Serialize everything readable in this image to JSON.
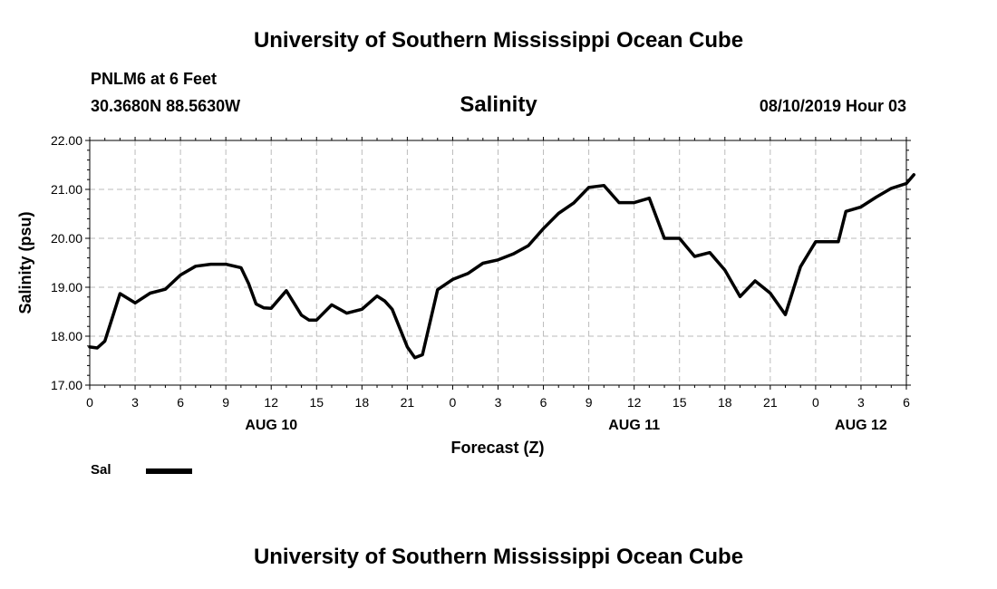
{
  "header": {
    "top_title": "University of Southern Mississippi Ocean Cube",
    "bottom_title": "University of Southern Mississippi Ocean Cube",
    "station": "PNLM6 at 6 Feet",
    "coords": "30.3680N 88.5630W",
    "datetime": "08/10/2019 Hour 03"
  },
  "legend": {
    "label": "Sal",
    "color": "#000000"
  },
  "chart_data": {
    "type": "line",
    "title": "Salinity",
    "xlabel": "Forecast (Z)",
    "ylabel": "Salinity (psu)",
    "ylim": [
      17.0,
      22.0
    ],
    "y_ticks": [
      "17.00",
      "18.00",
      "19.00",
      "20.00",
      "21.00",
      "22.00"
    ],
    "x_tick_labels": [
      "0",
      "3",
      "6",
      "9",
      "12",
      "15",
      "18",
      "21",
      "0",
      "3",
      "6",
      "9",
      "12",
      "15",
      "18",
      "21",
      "0",
      "3",
      "6"
    ],
    "day_labels": [
      {
        "label": "AUG 10",
        "hour": 12
      },
      {
        "label": "AUG 11",
        "hour": 36
      },
      {
        "label": "AUG 12",
        "hour": 51
      }
    ],
    "grid": true,
    "series": [
      {
        "name": "Sal",
        "color": "#000000",
        "x": [
          0,
          0.5,
          1,
          2,
          3,
          4,
          5,
          6,
          7,
          8,
          9,
          10,
          10.5,
          11,
          11.5,
          12,
          13,
          14,
          14.5,
          15,
          16,
          17,
          18,
          19,
          19.5,
          20,
          21,
          21.5,
          22,
          23,
          24,
          25,
          26,
          27,
          28,
          29,
          30,
          31,
          32,
          33,
          34,
          35,
          36,
          37,
          38,
          39,
          40,
          41,
          42,
          43,
          44,
          45,
          46,
          47,
          48,
          49,
          49.5,
          50,
          51,
          52,
          53,
          54,
          54.5
        ],
        "values": [
          17.78,
          17.76,
          17.9,
          18.87,
          18.68,
          18.88,
          18.96,
          19.25,
          19.43,
          19.47,
          19.47,
          19.4,
          19.08,
          18.66,
          18.58,
          18.57,
          18.93,
          18.43,
          18.33,
          18.33,
          18.64,
          18.47,
          18.55,
          18.82,
          18.72,
          18.55,
          17.78,
          17.56,
          17.62,
          18.95,
          19.16,
          19.28,
          19.49,
          19.56,
          19.68,
          19.85,
          20.2,
          20.51,
          20.72,
          21.04,
          21.08,
          20.73,
          20.73,
          20.82,
          20.0,
          20.0,
          19.63,
          19.71,
          19.35,
          18.81,
          19.13,
          18.88,
          18.44,
          19.42,
          19.93,
          19.93,
          19.93,
          20.55,
          20.64,
          20.84,
          21.02,
          21.12,
          21.3
        ]
      }
    ]
  }
}
